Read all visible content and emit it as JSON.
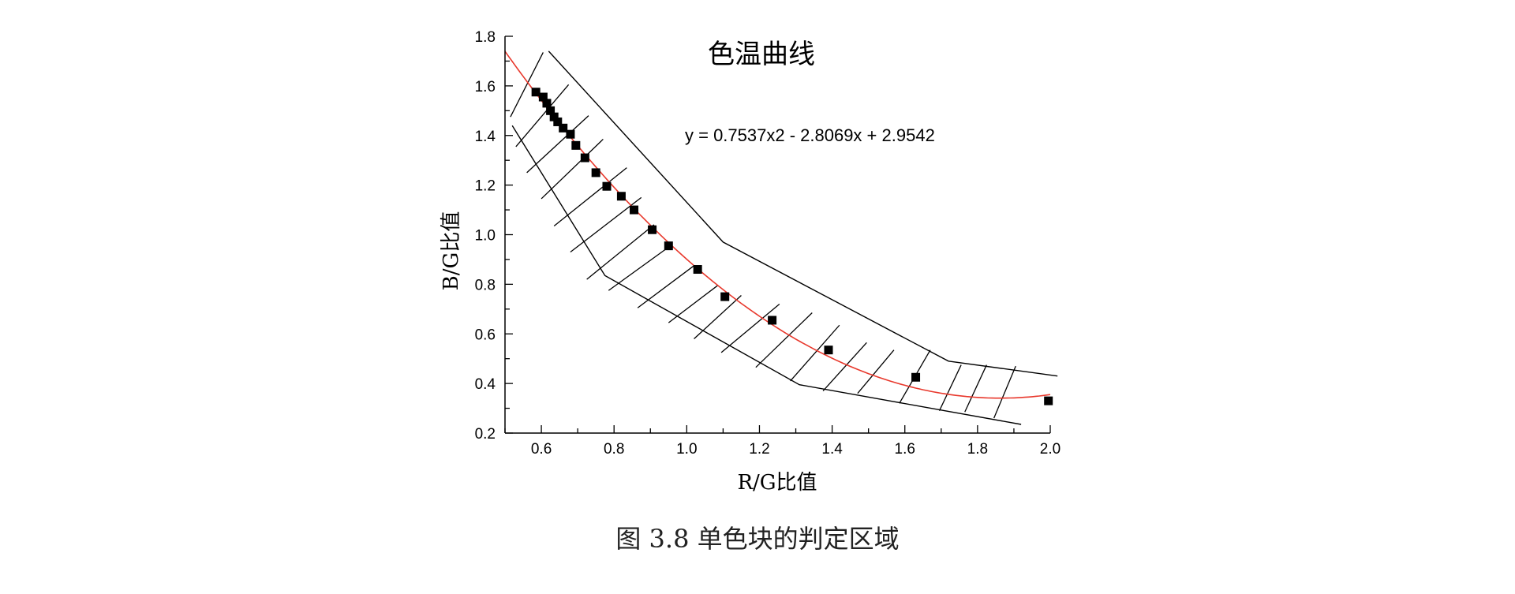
{
  "chart_data": {
    "type": "scatter",
    "title": "色温曲线",
    "xlabel": "R/G比值",
    "ylabel": "B/G比值",
    "xlim": [
      0.5,
      2.0
    ],
    "ylim": [
      0.2,
      1.8
    ],
    "x_ticks": [
      "0.6",
      "0.8",
      "1.0",
      "1.2",
      "1.4",
      "1.6",
      "1.8",
      "2.0"
    ],
    "y_ticks": [
      "0.2",
      "0.4",
      "0.6",
      "0.8",
      "1.0",
      "1.2",
      "1.4",
      "1.6",
      "1.8"
    ],
    "x_tick_values": [
      0.6,
      0.8,
      1.0,
      1.2,
      1.4,
      1.6,
      1.8,
      2.0
    ],
    "y_tick_values": [
      0.2,
      0.4,
      0.6,
      0.8,
      1.0,
      1.2,
      1.4,
      1.6,
      1.8
    ],
    "grid": false,
    "legend": "none",
    "series": [
      {
        "marker": "square",
        "color": "#000000",
        "x": [
          0.585,
          0.605,
          0.615,
          0.625,
          0.635,
          0.645,
          0.66,
          0.68,
          0.695,
          0.72,
          0.75,
          0.78,
          0.82,
          0.855,
          0.905,
          0.95,
          1.03,
          1.105,
          1.235,
          1.39,
          1.63,
          1.995
        ],
        "y": [
          1.575,
          1.555,
          1.53,
          1.5,
          1.475,
          1.455,
          1.43,
          1.405,
          1.36,
          1.31,
          1.25,
          1.195,
          1.155,
          1.1,
          1.02,
          0.955,
          0.86,
          0.75,
          0.655,
          0.535,
          0.425,
          0.33
        ]
      }
    ],
    "fit": {
      "equation_label": "y = 0.7537x2 - 2.8069x + 2.9542",
      "coefficients": [
        0.7537,
        -2.8069,
        2.9542
      ],
      "color": "#e8382c",
      "x_range": [
        0.5,
        2.0
      ]
    },
    "region": {
      "upper": [
        [
          0.62,
          1.74
        ],
        [
          1.1,
          0.97
        ],
        [
          1.72,
          0.49
        ],
        [
          2.02,
          0.43
        ]
      ],
      "lower": [
        [
          0.52,
          1.44
        ],
        [
          0.775,
          0.835
        ],
        [
          1.31,
          0.395
        ],
        [
          1.92,
          0.235
        ]
      ],
      "cross_lines": [
        [
          [
            0.515,
            1.475
          ],
          [
            0.605,
            1.735
          ]
        ],
        [
          [
            0.53,
            1.355
          ],
          [
            0.675,
            1.605
          ]
        ],
        [
          [
            0.56,
            1.25
          ],
          [
            0.73,
            1.48
          ]
        ],
        [
          [
            0.6,
            1.145
          ],
          [
            0.77,
            1.385
          ]
        ],
        [
          [
            0.635,
            1.035
          ],
          [
            0.835,
            1.27
          ]
        ],
        [
          [
            0.68,
            0.93
          ],
          [
            0.875,
            1.15
          ]
        ],
        [
          [
            0.725,
            0.82
          ],
          [
            0.91,
            1.04
          ]
        ],
        [
          [
            0.785,
            0.775
          ],
          [
            0.955,
            0.955
          ]
        ],
        [
          [
            0.865,
            0.705
          ],
          [
            1.02,
            0.875
          ]
        ],
        [
          [
            0.95,
            0.645
          ],
          [
            1.085,
            0.795
          ]
        ],
        [
          [
            1.02,
            0.58
          ],
          [
            1.15,
            0.755
          ]
        ],
        [
          [
            1.095,
            0.525
          ],
          [
            1.255,
            0.72
          ]
        ],
        [
          [
            1.19,
            0.465
          ],
          [
            1.345,
            0.685
          ]
        ],
        [
          [
            1.285,
            0.41
          ],
          [
            1.42,
            0.635
          ]
        ],
        [
          [
            1.375,
            0.37
          ],
          [
            1.495,
            0.565
          ]
        ],
        [
          [
            1.47,
            0.36
          ],
          [
            1.57,
            0.535
          ]
        ],
        [
          [
            1.585,
            0.32
          ],
          [
            1.67,
            0.535
          ]
        ],
        [
          [
            1.695,
            0.29
          ],
          [
            1.755,
            0.475
          ]
        ],
        [
          [
            1.765,
            0.285
          ],
          [
            1.825,
            0.475
          ]
        ],
        [
          [
            1.845,
            0.26
          ],
          [
            1.905,
            0.47
          ]
        ]
      ]
    }
  },
  "caption": "图 3.8  单色块的判定区域"
}
